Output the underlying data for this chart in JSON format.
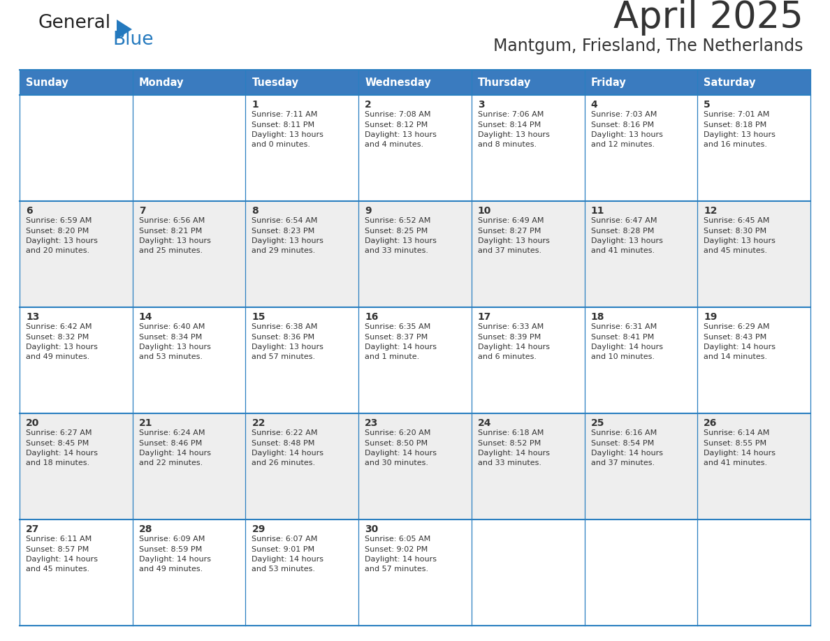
{
  "title": "April 2025",
  "subtitle": "Mantgum, Friesland, The Netherlands",
  "header_color": "#3a7bbf",
  "header_text_color": "#ffffff",
  "weekdays": [
    "Sunday",
    "Monday",
    "Tuesday",
    "Wednesday",
    "Thursday",
    "Friday",
    "Saturday"
  ],
  "days": [
    {
      "date": "",
      "sunrise": "",
      "sunset": "",
      "daylight_line1": "",
      "daylight_line2": ""
    },
    {
      "date": "",
      "sunrise": "",
      "sunset": "",
      "daylight_line1": "",
      "daylight_line2": ""
    },
    {
      "date": "1",
      "sunrise": "Sunrise: 7:11 AM",
      "sunset": "Sunset: 8:11 PM",
      "daylight_line1": "Daylight: 13 hours",
      "daylight_line2": "and 0 minutes."
    },
    {
      "date": "2",
      "sunrise": "Sunrise: 7:08 AM",
      "sunset": "Sunset: 8:12 PM",
      "daylight_line1": "Daylight: 13 hours",
      "daylight_line2": "and 4 minutes."
    },
    {
      "date": "3",
      "sunrise": "Sunrise: 7:06 AM",
      "sunset": "Sunset: 8:14 PM",
      "daylight_line1": "Daylight: 13 hours",
      "daylight_line2": "and 8 minutes."
    },
    {
      "date": "4",
      "sunrise": "Sunrise: 7:03 AM",
      "sunset": "Sunset: 8:16 PM",
      "daylight_line1": "Daylight: 13 hours",
      "daylight_line2": "and 12 minutes."
    },
    {
      "date": "5",
      "sunrise": "Sunrise: 7:01 AM",
      "sunset": "Sunset: 8:18 PM",
      "daylight_line1": "Daylight: 13 hours",
      "daylight_line2": "and 16 minutes."
    },
    {
      "date": "6",
      "sunrise": "Sunrise: 6:59 AM",
      "sunset": "Sunset: 8:20 PM",
      "daylight_line1": "Daylight: 13 hours",
      "daylight_line2": "and 20 minutes."
    },
    {
      "date": "7",
      "sunrise": "Sunrise: 6:56 AM",
      "sunset": "Sunset: 8:21 PM",
      "daylight_line1": "Daylight: 13 hours",
      "daylight_line2": "and 25 minutes."
    },
    {
      "date": "8",
      "sunrise": "Sunrise: 6:54 AM",
      "sunset": "Sunset: 8:23 PM",
      "daylight_line1": "Daylight: 13 hours",
      "daylight_line2": "and 29 minutes."
    },
    {
      "date": "9",
      "sunrise": "Sunrise: 6:52 AM",
      "sunset": "Sunset: 8:25 PM",
      "daylight_line1": "Daylight: 13 hours",
      "daylight_line2": "and 33 minutes."
    },
    {
      "date": "10",
      "sunrise": "Sunrise: 6:49 AM",
      "sunset": "Sunset: 8:27 PM",
      "daylight_line1": "Daylight: 13 hours",
      "daylight_line2": "and 37 minutes."
    },
    {
      "date": "11",
      "sunrise": "Sunrise: 6:47 AM",
      "sunset": "Sunset: 8:28 PM",
      "daylight_line1": "Daylight: 13 hours",
      "daylight_line2": "and 41 minutes."
    },
    {
      "date": "12",
      "sunrise": "Sunrise: 6:45 AM",
      "sunset": "Sunset: 8:30 PM",
      "daylight_line1": "Daylight: 13 hours",
      "daylight_line2": "and 45 minutes."
    },
    {
      "date": "13",
      "sunrise": "Sunrise: 6:42 AM",
      "sunset": "Sunset: 8:32 PM",
      "daylight_line1": "Daylight: 13 hours",
      "daylight_line2": "and 49 minutes."
    },
    {
      "date": "14",
      "sunrise": "Sunrise: 6:40 AM",
      "sunset": "Sunset: 8:34 PM",
      "daylight_line1": "Daylight: 13 hours",
      "daylight_line2": "and 53 minutes."
    },
    {
      "date": "15",
      "sunrise": "Sunrise: 6:38 AM",
      "sunset": "Sunset: 8:36 PM",
      "daylight_line1": "Daylight: 13 hours",
      "daylight_line2": "and 57 minutes."
    },
    {
      "date": "16",
      "sunrise": "Sunrise: 6:35 AM",
      "sunset": "Sunset: 8:37 PM",
      "daylight_line1": "Daylight: 14 hours",
      "daylight_line2": "and 1 minute."
    },
    {
      "date": "17",
      "sunrise": "Sunrise: 6:33 AM",
      "sunset": "Sunset: 8:39 PM",
      "daylight_line1": "Daylight: 14 hours",
      "daylight_line2": "and 6 minutes."
    },
    {
      "date": "18",
      "sunrise": "Sunrise: 6:31 AM",
      "sunset": "Sunset: 8:41 PM",
      "daylight_line1": "Daylight: 14 hours",
      "daylight_line2": "and 10 minutes."
    },
    {
      "date": "19",
      "sunrise": "Sunrise: 6:29 AM",
      "sunset": "Sunset: 8:43 PM",
      "daylight_line1": "Daylight: 14 hours",
      "daylight_line2": "and 14 minutes."
    },
    {
      "date": "20",
      "sunrise": "Sunrise: 6:27 AM",
      "sunset": "Sunset: 8:45 PM",
      "daylight_line1": "Daylight: 14 hours",
      "daylight_line2": "and 18 minutes."
    },
    {
      "date": "21",
      "sunrise": "Sunrise: 6:24 AM",
      "sunset": "Sunset: 8:46 PM",
      "daylight_line1": "Daylight: 14 hours",
      "daylight_line2": "and 22 minutes."
    },
    {
      "date": "22",
      "sunrise": "Sunrise: 6:22 AM",
      "sunset": "Sunset: 8:48 PM",
      "daylight_line1": "Daylight: 14 hours",
      "daylight_line2": "and 26 minutes."
    },
    {
      "date": "23",
      "sunrise": "Sunrise: 6:20 AM",
      "sunset": "Sunset: 8:50 PM",
      "daylight_line1": "Daylight: 14 hours",
      "daylight_line2": "and 30 minutes."
    },
    {
      "date": "24",
      "sunrise": "Sunrise: 6:18 AM",
      "sunset": "Sunset: 8:52 PM",
      "daylight_line1": "Daylight: 14 hours",
      "daylight_line2": "and 33 minutes."
    },
    {
      "date": "25",
      "sunrise": "Sunrise: 6:16 AM",
      "sunset": "Sunset: 8:54 PM",
      "daylight_line1": "Daylight: 14 hours",
      "daylight_line2": "and 37 minutes."
    },
    {
      "date": "26",
      "sunrise": "Sunrise: 6:14 AM",
      "sunset": "Sunset: 8:55 PM",
      "daylight_line1": "Daylight: 14 hours",
      "daylight_line2": "and 41 minutes."
    },
    {
      "date": "27",
      "sunrise": "Sunrise: 6:11 AM",
      "sunset": "Sunset: 8:57 PM",
      "daylight_line1": "Daylight: 14 hours",
      "daylight_line2": "and 45 minutes."
    },
    {
      "date": "28",
      "sunrise": "Sunrise: 6:09 AM",
      "sunset": "Sunset: 8:59 PM",
      "daylight_line1": "Daylight: 14 hours",
      "daylight_line2": "and 49 minutes."
    },
    {
      "date": "29",
      "sunrise": "Sunrise: 6:07 AM",
      "sunset": "Sunset: 9:01 PM",
      "daylight_line1": "Daylight: 14 hours",
      "daylight_line2": "and 53 minutes."
    },
    {
      "date": "30",
      "sunrise": "Sunrise: 6:05 AM",
      "sunset": "Sunset: 9:02 PM",
      "daylight_line1": "Daylight: 14 hours",
      "daylight_line2": "and 57 minutes."
    },
    {
      "date": "",
      "sunrise": "",
      "sunset": "",
      "daylight_line1": "",
      "daylight_line2": ""
    },
    {
      "date": "",
      "sunrise": "",
      "sunset": "",
      "daylight_line1": "",
      "daylight_line2": ""
    },
    {
      "date": "",
      "sunrise": "",
      "sunset": "",
      "daylight_line1": "",
      "daylight_line2": ""
    }
  ],
  "logo_color_general": "#222222",
  "logo_color_blue": "#2479be",
  "bg_color": "#ffffff",
  "cell_even_color": "#ffffff",
  "cell_odd_color": "#eeeeee",
  "border_color": "#2a7fc0",
  "text_color": "#333333",
  "title_fontsize": 38,
  "subtitle_fontsize": 17,
  "date_fontsize": 10,
  "info_fontsize": 8,
  "header_fontsize": 10.5,
  "logo_fontsize_general": 19,
  "logo_fontsize_blue": 19
}
